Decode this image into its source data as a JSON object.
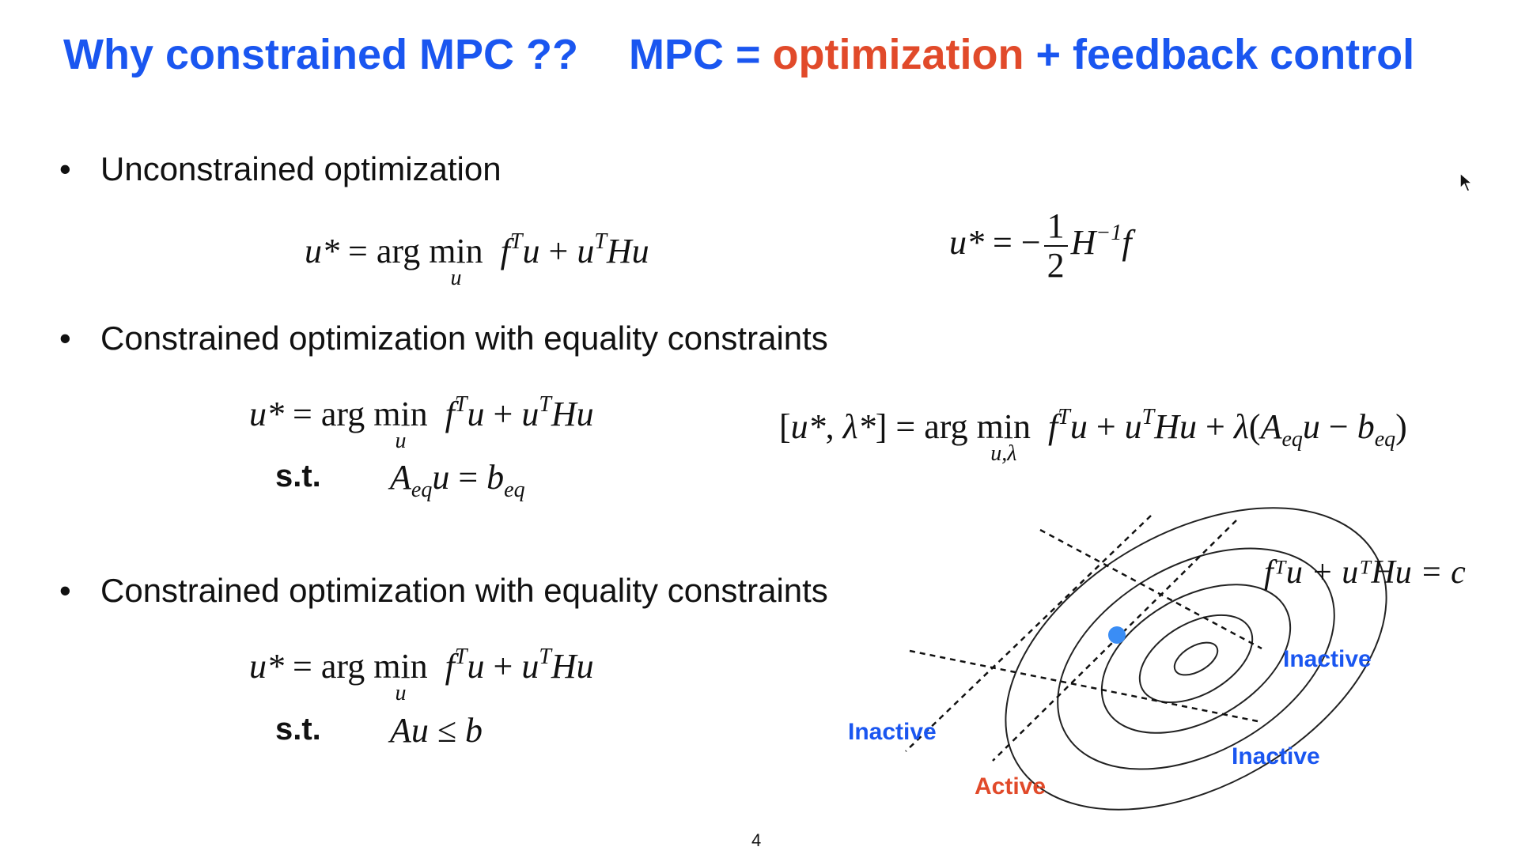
{
  "title": {
    "left": "Why constrained MPC ??",
    "right_mpc": "MPC = ",
    "right_optimization": "optimization",
    "right_rest": " + feedback control"
  },
  "bullets": [
    {
      "marker": "•",
      "text": "Unconstrained optimization"
    },
    {
      "marker": "•",
      "text": "Constrained optimization with equality constraints"
    },
    {
      "marker": "•",
      "text": "Constrained optimization with equality constraints"
    }
  ],
  "st_label": "s.t.",
  "diagram": {
    "contour_label": "fᵀu + uᵀHu = c",
    "labels": {
      "inactive_left": "Inactive",
      "inactive_right": "Inactive",
      "inactive_bottom": "Inactive",
      "active": "Active"
    },
    "colors": {
      "inactive": "#1a56f0",
      "active": "#e14a2a",
      "point": "#3a8df5"
    }
  },
  "page_number": "4",
  "colors": {
    "title_blue": "#1a56f0",
    "title_orange": "#e14a2a"
  }
}
